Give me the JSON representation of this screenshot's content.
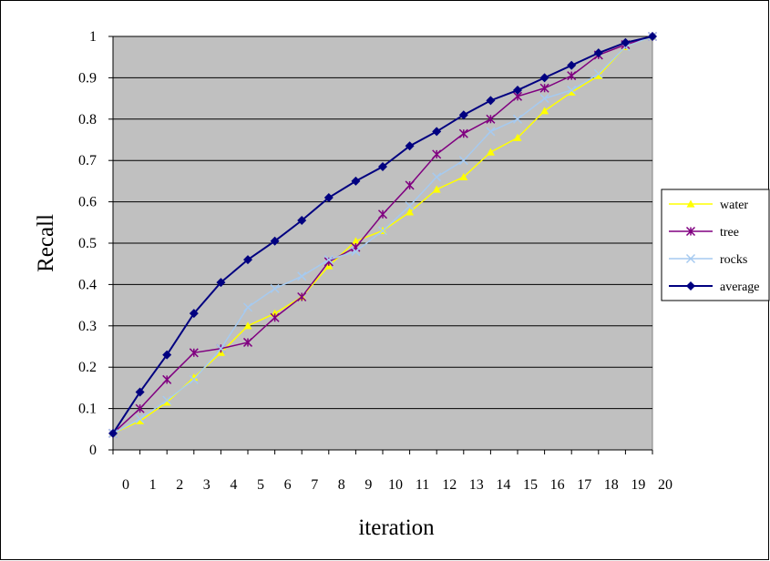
{
  "chart_data": {
    "type": "line",
    "title": "",
    "xlabel": "iteration",
    "ylabel": "Recall",
    "x": [
      0,
      1,
      2,
      3,
      4,
      5,
      6,
      7,
      8,
      9,
      10,
      11,
      12,
      13,
      14,
      15,
      16,
      17,
      18,
      19,
      20
    ],
    "x_tick_labels": [
      "0",
      "1",
      "2",
      "3",
      "4",
      "5",
      "6",
      "7",
      "8",
      "9",
      "10",
      "11",
      "12",
      "13",
      "14",
      "15",
      "16",
      "17",
      "18",
      "19",
      "20"
    ],
    "ylim": [
      0,
      1
    ],
    "y_tick_labels": [
      "0",
      "0.1",
      "0.2",
      "0.3",
      "0.4",
      "0.5",
      "0.6",
      "0.7",
      "0.8",
      "0.9",
      "1"
    ],
    "grid": "horizontal",
    "plot_background": "#c0c0c0",
    "legend_position": "right",
    "series": [
      {
        "name": "water",
        "color": "#ffff00",
        "marker": "triangle",
        "values": [
          0.04,
          0.07,
          0.115,
          0.175,
          0.235,
          0.3,
          0.33,
          0.37,
          0.445,
          0.505,
          0.53,
          0.575,
          0.63,
          0.66,
          0.72,
          0.755,
          0.82,
          0.865,
          0.905,
          0.975,
          1.0
        ]
      },
      {
        "name": "tree",
        "color": "#800080",
        "marker": "asterisk",
        "values": [
          0.04,
          0.1,
          0.17,
          0.235,
          0.245,
          0.26,
          0.32,
          0.37,
          0.455,
          0.49,
          0.57,
          0.64,
          0.715,
          0.765,
          0.8,
          0.855,
          0.875,
          0.905,
          0.955,
          0.98,
          1.0
        ]
      },
      {
        "name": "rocks",
        "color": "#a6caf0",
        "marker": "x",
        "values": [
          0.04,
          0.075,
          0.12,
          0.17,
          0.245,
          0.345,
          0.39,
          0.42,
          0.46,
          0.48,
          0.53,
          0.59,
          0.66,
          0.7,
          0.77,
          0.8,
          0.85,
          0.87,
          0.91,
          0.975,
          1.0
        ]
      },
      {
        "name": "average",
        "color": "#000080",
        "marker": "diamond",
        "values": [
          0.04,
          0.14,
          0.23,
          0.33,
          0.405,
          0.46,
          0.505,
          0.555,
          0.61,
          0.65,
          0.685,
          0.735,
          0.77,
          0.81,
          0.845,
          0.87,
          0.9,
          0.93,
          0.96,
          0.985,
          1.0
        ]
      }
    ]
  }
}
